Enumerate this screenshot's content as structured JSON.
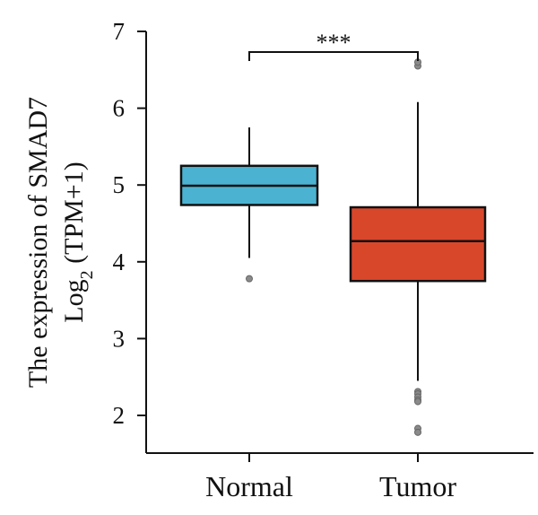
{
  "chart_data": {
    "type": "box",
    "ylabel_line1": "The expression of SMAD7",
    "ylabel_line2": {
      "prefix": "Log",
      "subscript": "2",
      "suffix": " (TPM+1)"
    },
    "ylim": [
      1.5,
      7
    ],
    "yticks": [
      2,
      3,
      4,
      5,
      6,
      7
    ],
    "categories": [
      "Normal",
      "Tumor"
    ],
    "boxes": [
      {
        "category": "Normal",
        "color": "#4bb3d1",
        "whisker_low": 4.05,
        "q1": 4.74,
        "median": 4.99,
        "q3": 5.25,
        "whisker_high": 5.75,
        "outliers": [
          3.78
        ]
      },
      {
        "category": "Tumor",
        "color": "#d9472b",
        "whisker_low": 2.45,
        "q1": 3.75,
        "median": 4.27,
        "q3": 4.71,
        "whisker_high": 6.08,
        "outliers": [
          6.55,
          6.6,
          2.31,
          2.28,
          2.24,
          2.2,
          2.18,
          1.83,
          1.78
        ]
      }
    ],
    "significance": {
      "label": "***",
      "between": [
        "Normal",
        "Tumor"
      ]
    }
  }
}
